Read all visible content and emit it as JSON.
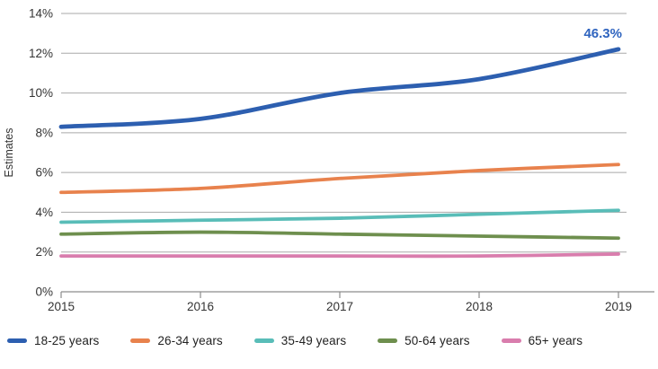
{
  "chart": {
    "ylabel": "Estimates",
    "annotation_label": "46.3%"
  },
  "chart_data": {
    "type": "line",
    "title": "",
    "xlabel": "",
    "ylabel": "Estimates",
    "categories": [
      "2015",
      "2016",
      "2017",
      "2018",
      "2019"
    ],
    "y_tick_labels": [
      "0%",
      "2%",
      "4%",
      "6%",
      "8%",
      "10%",
      "12%",
      "14%"
    ],
    "ylim": [
      0,
      14
    ],
    "y_step": 2,
    "grid": "horizontal",
    "legend_position": "bottom",
    "annotation": {
      "text": "46.3%",
      "series": "18-25 years",
      "position": "above-line-end",
      "color": "#2f64bf",
      "meaning": "percent increase of 18-25 years line from 2015 to 2019"
    },
    "series": [
      {
        "name": "18-25 years",
        "color": "#2d5fb0",
        "values": [
          8.3,
          8.7,
          10.0,
          10.7,
          12.2
        ]
      },
      {
        "name": "26-34 years",
        "color": "#e8824d",
        "values": [
          5.0,
          5.2,
          5.7,
          6.1,
          6.4
        ]
      },
      {
        "name": "35-49 years",
        "color": "#59bdb8",
        "values": [
          3.5,
          3.6,
          3.7,
          3.9,
          4.1
        ]
      },
      {
        "name": "50-64 years",
        "color": "#6e8f4e",
        "values": [
          2.9,
          3.0,
          2.9,
          2.8,
          2.7
        ]
      },
      {
        "name": "65+ years",
        "color": "#d97dad",
        "values": [
          1.8,
          1.8,
          1.8,
          1.8,
          1.9
        ]
      }
    ],
    "colors": {
      "grid": "#a9a9a9",
      "axis": "#8c8c8c",
      "tick_text": "#333333"
    }
  }
}
